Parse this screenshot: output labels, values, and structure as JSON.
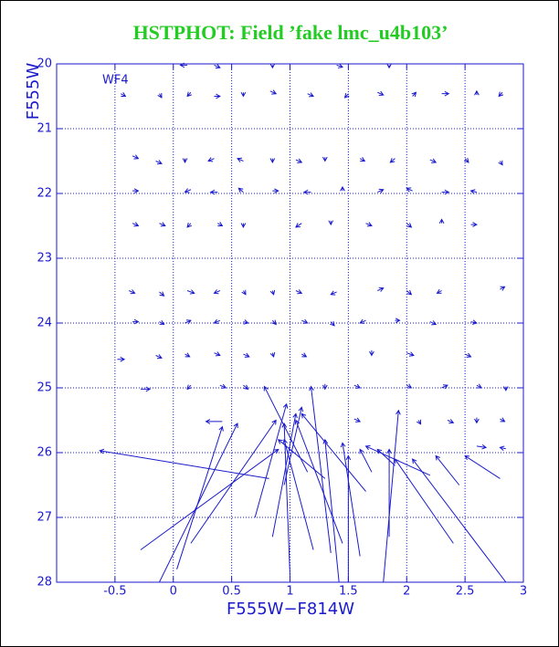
{
  "chart_data": {
    "type": "quiver",
    "title": "HSTPHOT: Field ’fake lmc_u4b103’",
    "annotation": "WF4",
    "x_label": "F555W−F814W",
    "y_label": "F555W",
    "color": "#1a1acc",
    "title_color": "#22cc22",
    "grid": true,
    "xlim": [
      -1,
      3
    ],
    "ylim": [
      28,
      20
    ],
    "xticks": [
      -0.5,
      0,
      0.5,
      1,
      1.5,
      2,
      2.5,
      3
    ],
    "yticks": [
      20,
      21,
      22,
      23,
      24,
      25,
      26,
      27,
      28
    ],
    "arrows": [
      {
        "x": 0.12,
        "y": 20.02,
        "x_end": 0.06,
        "y_end": 20.02
      },
      {
        "x": 0.35,
        "y": 20.02,
        "x_end": 0.4,
        "y_end": 20.06
      },
      {
        "x": 0.85,
        "y": 20.02,
        "x_end": 0.85,
        "y_end": 20.06
      },
      {
        "x": 1.4,
        "y": 20.02,
        "x_end": 1.45,
        "y_end": 20.05
      },
      {
        "x": 1.85,
        "y": 20.02,
        "x_end": 1.85,
        "y_end": 20.06
      },
      {
        "x": -0.45,
        "y": 20.46,
        "x_end": -0.41,
        "y_end": 20.5
      },
      {
        "x": -0.12,
        "y": 20.46,
        "x_end": -0.1,
        "y_end": 20.52
      },
      {
        "x": 0.15,
        "y": 20.44,
        "x_end": 0.12,
        "y_end": 20.5
      },
      {
        "x": 0.35,
        "y": 20.5,
        "x_end": 0.4,
        "y_end": 20.5
      },
      {
        "x": 0.6,
        "y": 20.44,
        "x_end": 0.6,
        "y_end": 20.5
      },
      {
        "x": 0.83,
        "y": 20.42,
        "x_end": 0.88,
        "y_end": 20.46
      },
      {
        "x": 1.15,
        "y": 20.46,
        "x_end": 1.2,
        "y_end": 20.5
      },
      {
        "x": 1.5,
        "y": 20.46,
        "x_end": 1.47,
        "y_end": 20.52
      },
      {
        "x": 1.75,
        "y": 20.44,
        "x_end": 1.8,
        "y_end": 20.48
      },
      {
        "x": 2.05,
        "y": 20.5,
        "x_end": 2.08,
        "y_end": 20.44
      },
      {
        "x": 2.3,
        "y": 20.46,
        "x_end": 2.36,
        "y_end": 20.46
      },
      {
        "x": 2.6,
        "y": 20.48,
        "x_end": 2.6,
        "y_end": 20.42
      },
      {
        "x": 2.82,
        "y": 20.44,
        "x_end": 2.79,
        "y_end": 20.5
      },
      {
        "x": -0.35,
        "y": 21.42,
        "x_end": -0.3,
        "y_end": 21.46
      },
      {
        "x": -0.15,
        "y": 21.5,
        "x_end": -0.1,
        "y_end": 21.54
      },
      {
        "x": 0.1,
        "y": 21.46,
        "x_end": 0.1,
        "y_end": 21.52
      },
      {
        "x": 0.35,
        "y": 21.46,
        "x_end": 0.3,
        "y_end": 21.5
      },
      {
        "x": 0.6,
        "y": 21.5,
        "x_end": 0.55,
        "y_end": 21.46
      },
      {
        "x": 0.85,
        "y": 21.46,
        "x_end": 0.85,
        "y_end": 21.52
      },
      {
        "x": 1.05,
        "y": 21.48,
        "x_end": 1.1,
        "y_end": 21.52
      },
      {
        "x": 1.3,
        "y": 21.44,
        "x_end": 1.3,
        "y_end": 21.5
      },
      {
        "x": 1.6,
        "y": 21.46,
        "x_end": 1.64,
        "y_end": 21.5
      },
      {
        "x": 1.9,
        "y": 21.46,
        "x_end": 1.86,
        "y_end": 21.52
      },
      {
        "x": 2.2,
        "y": 21.48,
        "x_end": 2.25,
        "y_end": 21.52
      },
      {
        "x": 2.5,
        "y": 21.46,
        "x_end": 2.53,
        "y_end": 21.52
      },
      {
        "x": 2.8,
        "y": 21.5,
        "x_end": 2.82,
        "y_end": 21.56
      },
      {
        "x": -0.35,
        "y": 21.96,
        "x_end": -0.3,
        "y_end": 21.96
      },
      {
        "x": 0.15,
        "y": 21.94,
        "x_end": 0.1,
        "y_end": 21.98
      },
      {
        "x": 0.38,
        "y": 21.98,
        "x_end": 0.32,
        "y_end": 21.98
      },
      {
        "x": 0.6,
        "y": 21.98,
        "x_end": 0.56,
        "y_end": 21.92
      },
      {
        "x": 0.85,
        "y": 21.96,
        "x_end": 0.9,
        "y_end": 21.96
      },
      {
        "x": 1.18,
        "y": 21.98,
        "x_end": 1.12,
        "y_end": 21.98
      },
      {
        "x": 1.45,
        "y": 21.96,
        "x_end": 1.45,
        "y_end": 21.9
      },
      {
        "x": 1.75,
        "y": 21.98,
        "x_end": 1.8,
        "y_end": 21.94
      },
      {
        "x": 2.05,
        "y": 21.96,
        "x_end": 2.0,
        "y_end": 21.92
      },
      {
        "x": 2.3,
        "y": 21.98,
        "x_end": 2.36,
        "y_end": 21.98
      },
      {
        "x": 2.6,
        "y": 21.98,
        "x_end": 2.55,
        "y_end": 21.96
      },
      {
        "x": -0.35,
        "y": 22.46,
        "x_end": -0.3,
        "y_end": 22.5
      },
      {
        "x": -0.12,
        "y": 22.46,
        "x_end": -0.07,
        "y_end": 22.5
      },
      {
        "x": 0.15,
        "y": 22.46,
        "x_end": 0.12,
        "y_end": 22.52
      },
      {
        "x": 0.38,
        "y": 22.46,
        "x_end": 0.42,
        "y_end": 22.5
      },
      {
        "x": 0.6,
        "y": 22.46,
        "x_end": 0.6,
        "y_end": 22.52
      },
      {
        "x": 1.1,
        "y": 22.46,
        "x_end": 1.05,
        "y_end": 22.52
      },
      {
        "x": 1.35,
        "y": 22.42,
        "x_end": 1.35,
        "y_end": 22.48
      },
      {
        "x": 1.65,
        "y": 22.46,
        "x_end": 1.7,
        "y_end": 22.5
      },
      {
        "x": 2.0,
        "y": 22.46,
        "x_end": 2.04,
        "y_end": 22.52
      },
      {
        "x": 2.3,
        "y": 22.46,
        "x_end": 2.3,
        "y_end": 22.4
      },
      {
        "x": 2.55,
        "y": 22.48,
        "x_end": 2.6,
        "y_end": 22.48
      },
      {
        "x": -0.38,
        "y": 23.5,
        "x_end": -0.33,
        "y_end": 23.54
      },
      {
        "x": -0.12,
        "y": 23.52,
        "x_end": -0.08,
        "y_end": 23.58
      },
      {
        "x": 0.12,
        "y": 23.5,
        "x_end": 0.18,
        "y_end": 23.54
      },
      {
        "x": 0.4,
        "y": 23.5,
        "x_end": 0.35,
        "y_end": 23.54
      },
      {
        "x": 0.6,
        "y": 23.5,
        "x_end": 0.62,
        "y_end": 23.56
      },
      {
        "x": 0.85,
        "y": 23.5,
        "x_end": 0.86,
        "y_end": 23.56
      },
      {
        "x": 1.05,
        "y": 23.5,
        "x_end": 1.1,
        "y_end": 23.54
      },
      {
        "x": 1.4,
        "y": 23.52,
        "x_end": 1.35,
        "y_end": 23.56
      },
      {
        "x": 1.75,
        "y": 23.5,
        "x_end": 1.8,
        "y_end": 23.46
      },
      {
        "x": 2.0,
        "y": 23.5,
        "x_end": 2.04,
        "y_end": 23.56
      },
      {
        "x": 2.3,
        "y": 23.5,
        "x_end": 2.26,
        "y_end": 23.54
      },
      {
        "x": 2.8,
        "y": 23.48,
        "x_end": 2.84,
        "y_end": 23.44
      },
      {
        "x": -0.35,
        "y": 23.98,
        "x_end": -0.3,
        "y_end": 23.98
      },
      {
        "x": -0.12,
        "y": 23.98,
        "x_end": -0.08,
        "y_end": 24.02
      },
      {
        "x": 0.1,
        "y": 24.0,
        "x_end": 0.15,
        "y_end": 23.96
      },
      {
        "x": 0.4,
        "y": 23.96,
        "x_end": 0.35,
        "y_end": 24.0
      },
      {
        "x": 0.6,
        "y": 23.98,
        "x_end": 0.64,
        "y_end": 24.0
      },
      {
        "x": 0.85,
        "y": 23.96,
        "x_end": 0.88,
        "y_end": 24.02
      },
      {
        "x": 1.1,
        "y": 23.96,
        "x_end": 1.15,
        "y_end": 24.0
      },
      {
        "x": 1.35,
        "y": 23.98,
        "x_end": 1.38,
        "y_end": 24.04
      },
      {
        "x": 1.65,
        "y": 23.96,
        "x_end": 1.6,
        "y_end": 24.0
      },
      {
        "x": 1.9,
        "y": 23.96,
        "x_end": 1.94,
        "y_end": 23.96
      },
      {
        "x": 2.2,
        "y": 23.98,
        "x_end": 2.25,
        "y_end": 24.02
      },
      {
        "x": 2.55,
        "y": 23.98,
        "x_end": 2.6,
        "y_end": 24.0
      },
      {
        "x": -0.48,
        "y": 24.56,
        "x_end": -0.42,
        "y_end": 24.56
      },
      {
        "x": -0.15,
        "y": 24.5,
        "x_end": -0.1,
        "y_end": 24.54
      },
      {
        "x": 0.1,
        "y": 24.48,
        "x_end": 0.14,
        "y_end": 24.52
      },
      {
        "x": 0.35,
        "y": 24.46,
        "x_end": 0.4,
        "y_end": 24.5
      },
      {
        "x": 0.6,
        "y": 24.48,
        "x_end": 0.65,
        "y_end": 24.52
      },
      {
        "x": 0.85,
        "y": 24.46,
        "x_end": 0.86,
        "y_end": 24.52
      },
      {
        "x": 1.1,
        "y": 24.48,
        "x_end": 1.14,
        "y_end": 24.52
      },
      {
        "x": 1.7,
        "y": 24.42,
        "x_end": 1.7,
        "y_end": 24.5
      },
      {
        "x": 2.0,
        "y": 24.46,
        "x_end": 2.06,
        "y_end": 24.5
      },
      {
        "x": 2.5,
        "y": 24.48,
        "x_end": 2.55,
        "y_end": 24.52
      },
      {
        "x": -0.28,
        "y": 25.02,
        "x_end": -0.2,
        "y_end": 25.02
      },
      {
        "x": 0.15,
        "y": 24.96,
        "x_end": 0.12,
        "y_end": 25.02
      },
      {
        "x": 0.4,
        "y": 24.96,
        "x_end": 0.45,
        "y_end": 25.0
      },
      {
        "x": 0.6,
        "y": 24.96,
        "x_end": 0.64,
        "y_end": 25.02
      },
      {
        "x": 1.3,
        "y": 24.94,
        "x_end": 1.3,
        "y_end": 25.02
      },
      {
        "x": 1.55,
        "y": 24.96,
        "x_end": 1.6,
        "y_end": 25.0
      },
      {
        "x": 2.0,
        "y": 24.96,
        "x_end": 2.04,
        "y_end": 25.0
      },
      {
        "x": 2.3,
        "y": 25.0,
        "x_end": 2.35,
        "y_end": 24.96
      },
      {
        "x": 2.6,
        "y": 24.96,
        "x_end": 2.64,
        "y_end": 25.0
      },
      {
        "x": 2.85,
        "y": 24.98,
        "x_end": 2.85,
        "y_end": 25.04
      },
      {
        "x": 0.42,
        "y": 25.52,
        "x_end": 0.28,
        "y_end": 25.52
      },
      {
        "x": 1.55,
        "y": 25.48,
        "x_end": 1.6,
        "y_end": 25.52
      },
      {
        "x": 2.1,
        "y": 25.5,
        "x_end": 2.12,
        "y_end": 25.56
      },
      {
        "x": 2.35,
        "y": 25.5,
        "x_end": 2.4,
        "y_end": 25.54
      },
      {
        "x": 2.6,
        "y": 25.46,
        "x_end": 2.6,
        "y_end": 25.54
      },
      {
        "x": 2.8,
        "y": 25.48,
        "x_end": 2.84,
        "y_end": 25.52
      },
      {
        "x": 2.6,
        "y": 25.9,
        "x_end": 2.68,
        "y_end": 25.92
      },
      {
        "x": 2.85,
        "y": 25.94,
        "x_end": 2.8,
        "y_end": 25.92
      },
      {
        "x": 0.82,
        "y": 26.4,
        "x_end": -0.63,
        "y_end": 25.97
      },
      {
        "x": -0.28,
        "y": 27.5,
        "x_end": 0.9,
        "y_end": 25.95
      },
      {
        "x": 0.03,
        "y": 27.8,
        "x_end": 0.42,
        "y_end": 25.6
      },
      {
        "x": -0.12,
        "y": 28.0,
        "x_end": 0.55,
        "y_end": 25.55
      },
      {
        "x": 0.15,
        "y": 27.4,
        "x_end": 0.88,
        "y_end": 25.5
      },
      {
        "x": 0.7,
        "y": 27.0,
        "x_end": 0.97,
        "y_end": 25.25
      },
      {
        "x": 0.85,
        "y": 27.3,
        "x_end": 1.05,
        "y_end": 25.4
      },
      {
        "x": 1.0,
        "y": 27.9,
        "x_end": 0.95,
        "y_end": 25.55
      },
      {
        "x": 1.45,
        "y": 27.4,
        "x_end": 1.05,
        "y_end": 25.5
      },
      {
        "x": 1.15,
        "y": 26.3,
        "x_end": 0.78,
        "y_end": 24.98
      },
      {
        "x": 1.35,
        "y": 27.55,
        "x_end": 1.18,
        "y_end": 24.98
      },
      {
        "x": 1.42,
        "y": 28.0,
        "x_end": 1.3,
        "y_end": 25.8
      },
      {
        "x": 1.5,
        "y": 28.0,
        "x_end": 1.5,
        "y_end": 26.05
      },
      {
        "x": 1.6,
        "y": 27.6,
        "x_end": 1.45,
        "y_end": 25.85
      },
      {
        "x": 1.8,
        "y": 28.0,
        "x_end": 1.93,
        "y_end": 25.35
      },
      {
        "x": 1.85,
        "y": 27.3,
        "x_end": 1.85,
        "y_end": 25.95
      },
      {
        "x": 2.4,
        "y": 27.4,
        "x_end": 1.9,
        "y_end": 26.1
      },
      {
        "x": 2.85,
        "y": 28.0,
        "x_end": 2.05,
        "y_end": 26.1
      },
      {
        "x": 2.45,
        "y": 26.5,
        "x_end": 2.25,
        "y_end": 26.05
      },
      {
        "x": 2.8,
        "y": 26.4,
        "x_end": 2.5,
        "y_end": 26.05
      },
      {
        "x": 2.2,
        "y": 26.35,
        "x_end": 1.65,
        "y_end": 25.9
      },
      {
        "x": 1.2,
        "y": 27.5,
        "x_end": 0.95,
        "y_end": 25.8
      },
      {
        "x": 0.95,
        "y": 26.5,
        "x_end": 1.1,
        "y_end": 25.3
      },
      {
        "x": 1.65,
        "y": 26.6,
        "x_end": 1.1,
        "y_end": 25.4
      },
      {
        "x": 1.3,
        "y": 26.4,
        "x_end": 0.9,
        "y_end": 25.8
      },
      {
        "x": 1.7,
        "y": 26.3,
        "x_end": 1.6,
        "y_end": 25.95
      },
      {
        "x": 1.9,
        "y": 26.2,
        "x_end": 1.75,
        "y_end": 25.95
      }
    ]
  }
}
